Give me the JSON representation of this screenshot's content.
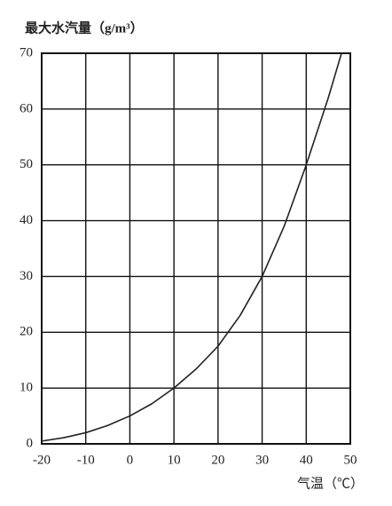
{
  "chart_data": {
    "type": "line",
    "title": "最大水汽量（g/m³）",
    "x_label": "气温（℃）",
    "x": [
      -20,
      -15,
      -10,
      -5,
      0,
      5,
      10,
      15,
      20,
      25,
      30,
      35,
      40,
      45,
      48
    ],
    "values": [
      0.5,
      1.1,
      2,
      3.3,
      5,
      7.2,
      10,
      13.4,
      17.5,
      23,
      30,
      39,
      50,
      62,
      70
    ],
    "color": "#222222",
    "xlim": [
      -20,
      50
    ],
    "xticks": [
      -20,
      -10,
      0,
      10,
      20,
      30,
      40,
      50
    ],
    "ylim": [
      0,
      70
    ],
    "yticks": [
      0,
      10,
      20,
      30,
      40,
      50,
      60,
      70
    ],
    "grid": true
  }
}
